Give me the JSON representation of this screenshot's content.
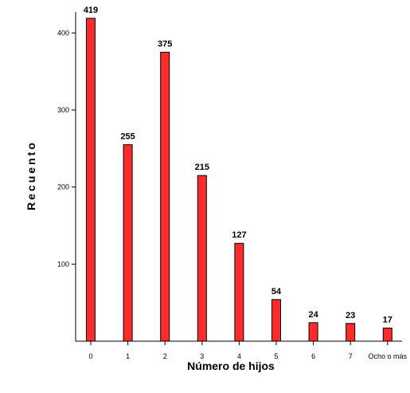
{
  "chart_data": {
    "type": "bar",
    "xlabel": "Número de hijos",
    "ylabel": "Recuento",
    "categories": [
      "0",
      "1",
      "2",
      "3",
      "4",
      "5",
      "6",
      "7",
      "Ocho o más"
    ],
    "values": [
      419,
      255,
      375,
      215,
      127,
      54,
      24,
      23,
      17
    ],
    "data_labels": [
      "419",
      "255",
      "375",
      "215",
      "127",
      "54",
      "24",
      "23",
      "17"
    ],
    "y_ticks": [
      100,
      200,
      300,
      400
    ],
    "ylim": [
      0,
      430
    ],
    "grid": false,
    "legend": "none",
    "bar_color": "#ff2a2a",
    "bar_stroke": "#000000"
  }
}
